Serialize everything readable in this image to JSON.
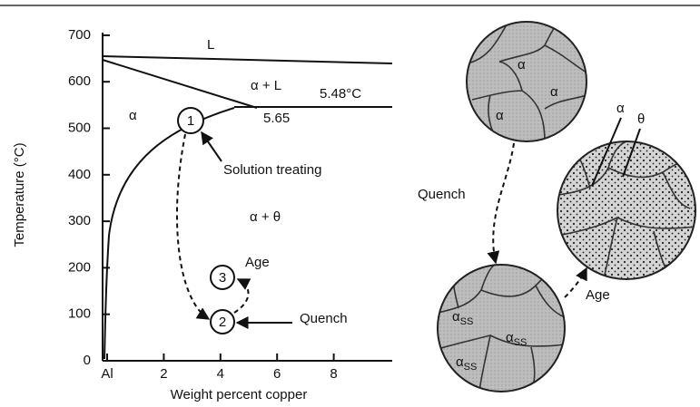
{
  "axes": {
    "y_title": "Temperature (°C)",
    "x_title": "Weight percent copper",
    "yticks": [
      0,
      100,
      200,
      300,
      400,
      500,
      600,
      700
    ],
    "xticks": [
      {
        "value": 0,
        "label": "Al"
      },
      2,
      4,
      6,
      8
    ]
  },
  "phase_diagram": {
    "liquid": "L",
    "alpha_liquid": "α + L",
    "eutectic_temp": "5.48°C",
    "alpha": "α",
    "eutectic_comp": "5.65",
    "solution_treating": "Solution treating",
    "alpha_theta": "α + θ",
    "steps": [
      "1",
      "2",
      "3"
    ],
    "age": "Age",
    "quench": "Quench"
  },
  "microstructures": {
    "top_grains": [
      "α",
      "α",
      "α"
    ],
    "aged_labels": {
      "alpha": "α",
      "theta": "θ"
    },
    "quenched_grains": [
      {
        "symbol": "α",
        "subscript": "SS"
      },
      {
        "symbol": "α",
        "subscript": "SS"
      },
      {
        "symbol": "α",
        "subscript": "SS"
      }
    ],
    "quench_arrow": "Quench",
    "age_arrow": "Age"
  }
}
